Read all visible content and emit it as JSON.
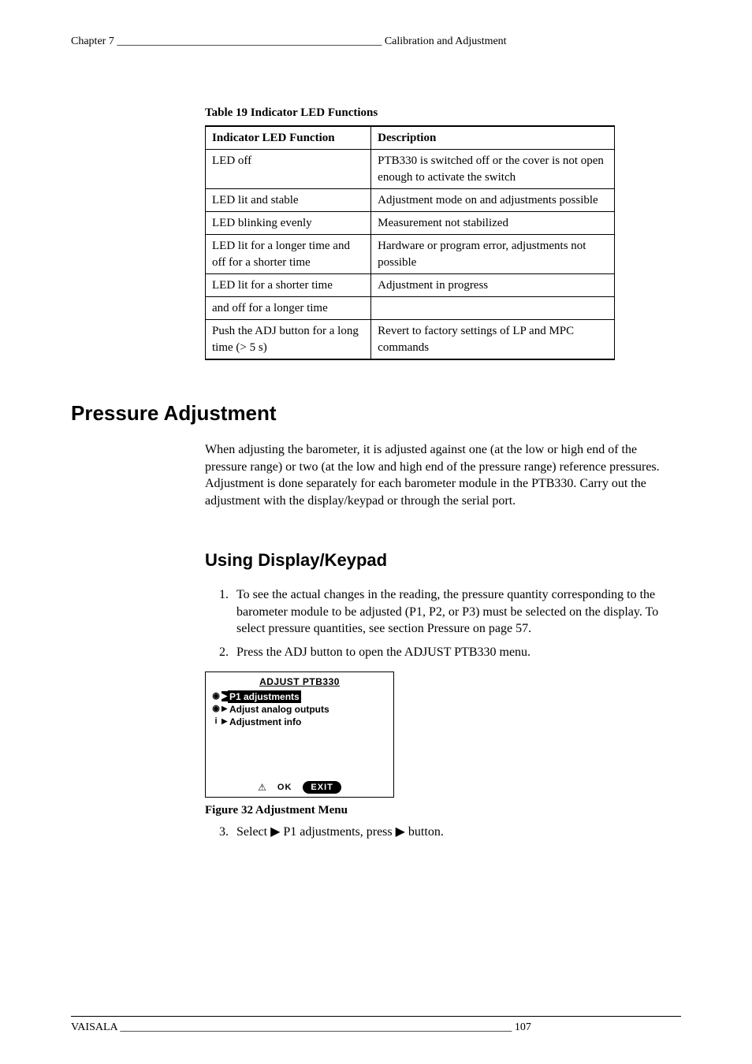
{
  "header": {
    "left": "Chapter 7 ________________________________________________ Calibration and Adjustment",
    "right": ""
  },
  "table": {
    "caption": "Table 19      Indicator LED Functions",
    "columns": [
      "Indicator LED Function",
      "Description"
    ],
    "rows": [
      [
        "LED off",
        "PTB330 is switched off or the cover is not open enough to activate the switch"
      ],
      [
        "LED lit and stable",
        "Adjustment mode on and adjustments possible"
      ],
      [
        "LED blinking evenly",
        "Measurement not stabilized"
      ],
      [
        "LED lit for a longer time and off for a shorter time",
        "Hardware or program error, adjustments not possible"
      ],
      [
        "LED lit for a shorter time",
        "Adjustment in progress"
      ],
      [
        "and off for a longer time",
        ""
      ],
      [
        "Push the ADJ button for a long time (> 5 s)",
        "Revert to factory settings of LP and MPC commands"
      ]
    ]
  },
  "section_title": "Pressure Adjustment",
  "intro": "When adjusting the barometer, it is adjusted against one (at the low or high end of the pressure range) or two (at the low and high end of the pressure range) reference pressures. Adjustment is done separately for each barometer module in the PTB330. Carry out the adjustment with the display/keypad or through the serial port.",
  "subsection_title": "Using Display/Keypad",
  "steps": [
    "To see the actual changes in the reading, the pressure quantity corresponding to the barometer module to be adjusted (P1, P2, or P3) must be selected on the display. To select pressure quantities, see section Pressure on page 57.",
    "Press the ADJ button to open the ADJUST PTB330 menu."
  ],
  "lcd": {
    "title": "ADJUST PTB330",
    "items": [
      {
        "icon": "gauge",
        "label": "P1 adjustments",
        "sub": true,
        "selected": true
      },
      {
        "icon": "gauge",
        "label": "Adjust analog outputs",
        "selected": false
      },
      {
        "icon": "info",
        "label": "Adjustment info",
        "selected": false
      }
    ],
    "ok": "OK",
    "exit": "EXIT"
  },
  "figure_caption": "Figure 32    Adjustment Menu",
  "step3": "Select ▶ P1 adjustments, press ▶ button.",
  "footer": {
    "left": "VAISALA _______________________________________________________________________ 107",
    "right": ""
  }
}
